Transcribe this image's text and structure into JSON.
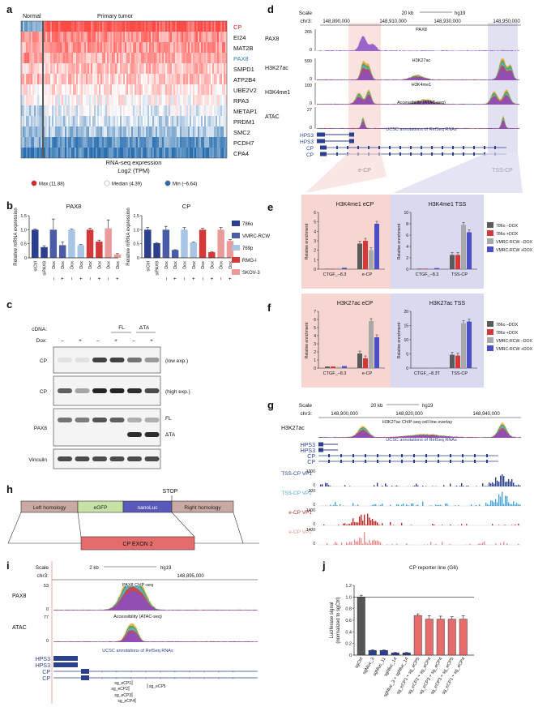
{
  "panel_a": {
    "label": "a",
    "col_normal": "Normal",
    "col_tumor": "Primary tumor",
    "genes": [
      "CP",
      "EI24",
      "MAT2B",
      "PAX8",
      "SMPD1",
      "ATP2B4",
      "UBE2V2",
      "RPA3",
      "METAP1",
      "PRDM1",
      "SMC2",
      "PCDH7",
      "CPA4"
    ],
    "gene_colors": {
      "CP": "#d7282a",
      "PAX8": "#3a78c2"
    },
    "caption1": "RNA-seq expression",
    "caption2": "Log2 (TPM)",
    "legend": [
      {
        "label": "Max (11.88)",
        "color": "#d7282a"
      },
      {
        "label": "Median (4.39)",
        "color": "#ffffff"
      },
      {
        "label": "Min (–6.64)",
        "color": "#2c6bb0"
      }
    ],
    "row_levels_tumor": [
      0.95,
      0.6,
      0.55,
      0.45,
      0.35,
      0.3,
      0.2,
      0.05,
      -0.1,
      -0.25,
      -0.4,
      -0.7,
      -0.85
    ],
    "row_levels_normal": [
      -0.6,
      0.6,
      0.4,
      0.6,
      0.3,
      0.4,
      0.1,
      0.0,
      -0.3,
      -0.3,
      -0.5,
      -0.6,
      -0.9
    ]
  },
  "panel_b": {
    "label": "b",
    "ylabel": "Relative mRNA expression",
    "charts": [
      {
        "title": "PAX8",
        "ylim": [
          0,
          1.5
        ],
        "yticks": [
          "0",
          "0.5",
          "1.0",
          "1.5"
        ],
        "values": [
          1.0,
          0.38,
          1.0,
          0.45,
          1.0,
          0.45,
          1.0,
          0.58,
          1.05,
          0.12
        ],
        "errors": [
          0.02,
          0.05,
          0.38,
          0.12,
          0.02,
          0.02,
          0.05,
          0.05,
          0.3,
          0.03
        ]
      },
      {
        "title": "CP",
        "ylim": [
          0,
          1.5
        ],
        "yticks": [
          "0",
          "0.5",
          "1.0",
          "1.5"
        ],
        "values": [
          1.0,
          0.52,
          1.0,
          0.28,
          1.0,
          0.55,
          1.0,
          0.2,
          1.0,
          0.6
        ],
        "errors": [
          0.08,
          0.01,
          0.12,
          0.01,
          0.08,
          0.01,
          0.05,
          0.01,
          0.08,
          0.05
        ]
      }
    ],
    "xlabels": [
      "siCtrl",
      "siPAX8",
      "Dox",
      "Dox",
      "Dox",
      "Dox",
      "Dox",
      "Dox",
      "Dox",
      "Dox"
    ],
    "signs": [
      "",
      "",
      "–",
      "+",
      "–",
      "+",
      "–",
      "+",
      "–",
      "+"
    ],
    "legend": [
      {
        "label": "786o",
        "color": "#2b3f8e"
      },
      {
        "label": "VMRC-RCW",
        "color": "#4a5ca8"
      },
      {
        "label": "769p",
        "color": "#a8c5e6"
      },
      {
        "label": "RMG-I",
        "color": "#d23a3a"
      },
      {
        "label": "SKOV-3",
        "color": "#eb9a9a"
      }
    ]
  },
  "panel_c": {
    "label": "c",
    "cdna_label": "cDNA:",
    "dox_label": "Dox:",
    "groups": [
      "FL",
      "ΔTA"
    ],
    "signs": [
      "–",
      "+",
      "–",
      "+",
      "–",
      "+"
    ],
    "rows": [
      {
        "name": "CP",
        "note": "(low exp.)"
      },
      {
        "name": "CP",
        "note": "(high exp.)"
      },
      {
        "name": "PAX8",
        "note": "FL"
      },
      {
        "name": "Vinculin",
        "note": ""
      }
    ],
    "pax8_note2": "ΔTA"
  },
  "panel_d": {
    "label": "d",
    "scale_label": "Scale",
    "chr_label": "chr3:",
    "scale_bar": "20 kb",
    "genome": "hg19",
    "coords": [
      "148,890,000",
      "148,910,000",
      "148,930,000",
      "148,950,000"
    ],
    "tracks": [
      {
        "name": "PAX8",
        "max": "265",
        "zero": "0",
        "title": "PAX8"
      },
      {
        "name": "H3K27ac",
        "max": "590",
        "zero": "0",
        "title": "H3K27ac"
      },
      {
        "name": "H3K4me1",
        "max": "100",
        "zero": "0",
        "title": "H3K4me1"
      },
      {
        "name": "ATAC",
        "max": "27",
        "zero": "0",
        "title": "Accessibility (ATAC-seq)"
      }
    ],
    "refseq_title": "UCSC annotations of RefSeq RNAs",
    "genes": [
      "HPS3",
      "HPS3",
      "CP",
      "CP"
    ],
    "region1": "e-CP",
    "region2": "TSS-CP"
  },
  "panel_e": {
    "label": "e",
    "left_title": "H3K4me1 eCP",
    "right_title": "H3K4me1 TSS",
    "ylabel": "Relative enrichment",
    "left_cats": [
      "CTGF_–8.3",
      "e-CP"
    ],
    "right_cats": [
      "CTGF_–8.3",
      "TSS-CP"
    ],
    "left_values": [
      [
        0.05,
        0.05,
        0.1,
        0.15
      ],
      [
        2.7,
        3.0,
        2.0,
        4.8
      ]
    ],
    "right_values": [
      [
        0.1,
        0.1,
        0.15,
        0.2
      ],
      [
        2.5,
        2.5,
        7.8,
        6.5
      ]
    ],
    "left_ylim": [
      0,
      6
    ],
    "right_ylim": [
      0,
      10
    ],
    "legend": [
      {
        "label": "786o –DOX",
        "color": "#5a5a5a"
      },
      {
        "label": "786o +DOX",
        "color": "#d23a3a"
      },
      {
        "label": "VMRC-RCW –DOX",
        "color": "#a8a8a8"
      },
      {
        "label": "VMRC-RCW +DOX",
        "color": "#4a4fc4"
      }
    ]
  },
  "panel_f": {
    "label": "f",
    "left_title": "H3K27ac eCP",
    "right_title": "H3K27ac TSS",
    "ylabel": "Relative enrichment",
    "left_cats": [
      "CTGF_–8.3",
      "e-CP"
    ],
    "right_cats": [
      "CTGF_–8.3T",
      "TSS-CP"
    ],
    "left_values": [
      [
        0.2,
        0.2,
        0.15,
        0.25
      ],
      [
        1.8,
        1.2,
        5.8,
        3.8
      ]
    ],
    "right_values": [
      [
        0.05,
        0.05,
        0.05,
        0.05
      ],
      [
        4.7,
        4.4,
        15.8,
        16.4
      ]
    ],
    "left_ylim": [
      0,
      7
    ],
    "right_ylim": [
      0,
      20
    ],
    "legend": [
      {
        "label": "786o –DOX",
        "color": "#5a5a5a"
      },
      {
        "label": "786o +DOX",
        "color": "#d23a3a"
      },
      {
        "label": "VMRC-RCW –DOX",
        "color": "#a8a8a8"
      },
      {
        "label": "VMRC-RCW +DOX",
        "color": "#4a4fc4"
      }
    ]
  },
  "panel_g": {
    "label": "g",
    "scale_label": "Scale",
    "chr_label": "chr3:",
    "scale_bar": "20 kb",
    "genome": "hg19",
    "coords": [
      "148,900,000",
      "148,920,000",
      "148,940,000"
    ],
    "track_title": "H3K27ac ChIP-seq cell line overlay",
    "track_name": "H3K27ac",
    "refseq_title": "UCSC annotations of RefSeq RNAs",
    "genes": [
      "HPS3",
      "HPS3",
      "CP",
      "CP"
    ],
    "vp_tracks": [
      {
        "name": "TSS-CP VP1",
        "max": "1000",
        "zero": "0",
        "color": "#2b3f8e"
      },
      {
        "name": "TSS-CP VP2",
        "max": "300",
        "zero": "0",
        "color": "#4aa6d6"
      },
      {
        "name": "e-CP VP1",
        "max": "1400",
        "zero": "0",
        "color": "#c22a2a"
      },
      {
        "name": "e-CP VP2",
        "max": "1400",
        "zero": "0",
        "color": "#e89090"
      }
    ]
  },
  "panel_h": {
    "label": "h",
    "stop_label": "STOP",
    "segments": [
      {
        "label": "Left homology",
        "color": "#c9a9a3"
      },
      {
        "label": "eGFP",
        "color": "#c6e2a6"
      },
      {
        "label": "nanoLuc",
        "color": "#5a58b8"
      },
      {
        "label": "Right homology",
        "color": "#c9a9a3"
      }
    ],
    "exon_label": "CP EXON 2"
  },
  "panel_i": {
    "label": "i",
    "scale_label": "Scale",
    "chr_label": "chr3:",
    "scale_bar": "2 kb",
    "genome": "hg19",
    "coord": "148,895,000",
    "tracks": [
      {
        "name": "PAX8",
        "max": "53",
        "zero": "0",
        "title": "PAX8 ChIP-seq"
      },
      {
        "name": "ATAC",
        "max": "77",
        "zero": "0",
        "title": "Accessibility (ATAC-seq)"
      }
    ],
    "refseq_title": "UCSC annotations of RefSeq RNAs",
    "genes": [
      "HPS3",
      "HPS3",
      "CP",
      "CP"
    ],
    "guides": [
      "sg_eCP1",
      "sg_eCP2",
      "sg_eCP3",
      "sg_eCP4",
      "sg_eCP5"
    ]
  },
  "panel_j": {
    "label": "j",
    "chart_data": {
      "type": "bar",
      "title": "CP reporter line (G6)",
      "ylabel": "Luciferase signal (normalized to sgCtrl)",
      "ylim": [
        0,
        1.2
      ],
      "yticks": [
        "0",
        "0.2",
        "0.4",
        "0.6",
        "0.8",
        "1.0",
        "1.2"
      ],
      "categories": [
        "sgCtrl",
        "sgNluc_3",
        "sgNluc_11",
        "sgNluc_14",
        "sgNluc_3 + sgNluc_14",
        "sg_eCP1 + sg_eCP5",
        "sg_eCP2 + sg_eCP4",
        "sg_eCP3 + sg_eCP4",
        "sg_eCP3 + sg_eCP5",
        "sg_eCP1 + sg_eCP4"
      ],
      "values": [
        1.0,
        0.08,
        0.08,
        0.04,
        0.04,
        0.68,
        0.62,
        0.62,
        0.62,
        0.62
      ],
      "errors": [
        0.03,
        0.01,
        0.01,
        0.005,
        0.005,
        0.03,
        0.06,
        0.05,
        0.04,
        0.06
      ],
      "colors": [
        "#555555",
        "#2b3f8e",
        "#2b3f8e",
        "#2b3f8e",
        "#2b3f8e",
        "#e46c6c",
        "#e46c6c",
        "#e46c6c",
        "#e46c6c",
        "#e46c6c"
      ]
    }
  }
}
